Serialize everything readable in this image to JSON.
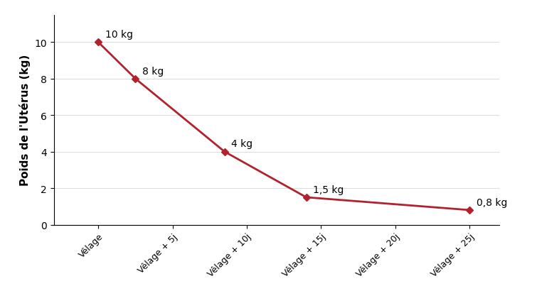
{
  "chart_data": {
    "type": "line",
    "y_label": "Poids de l'Utérus (kg)",
    "x": [
      0,
      2.5,
      8.5,
      14,
      25
    ],
    "values": [
      10,
      8,
      4,
      1.5,
      0.8
    ],
    "value_labels": [
      "10 kg",
      "8 kg",
      "4 kg",
      "1,5 kg",
      "0,8 kg"
    ],
    "data_labels": true,
    "color": "#b2222e",
    "marker": "diamond",
    "line_style": "solid",
    "xlim": [
      -3,
      27
    ],
    "xticks": [
      {
        "value": 0,
        "label": "Vêlage"
      },
      {
        "value": 5,
        "label": "Vêlage + 5j"
      },
      {
        "value": 10,
        "label": "Vêlage + 10j"
      },
      {
        "value": 15,
        "label": "Vêlage + 15j"
      },
      {
        "value": 20,
        "label": "Vêlage + 20j"
      },
      {
        "value": 25,
        "label": "Vêlage + 25j"
      }
    ],
    "ylim": [
      0,
      11.5
    ],
    "yticks": [
      0,
      2,
      4,
      6,
      8,
      10
    ],
    "grid": true
  }
}
